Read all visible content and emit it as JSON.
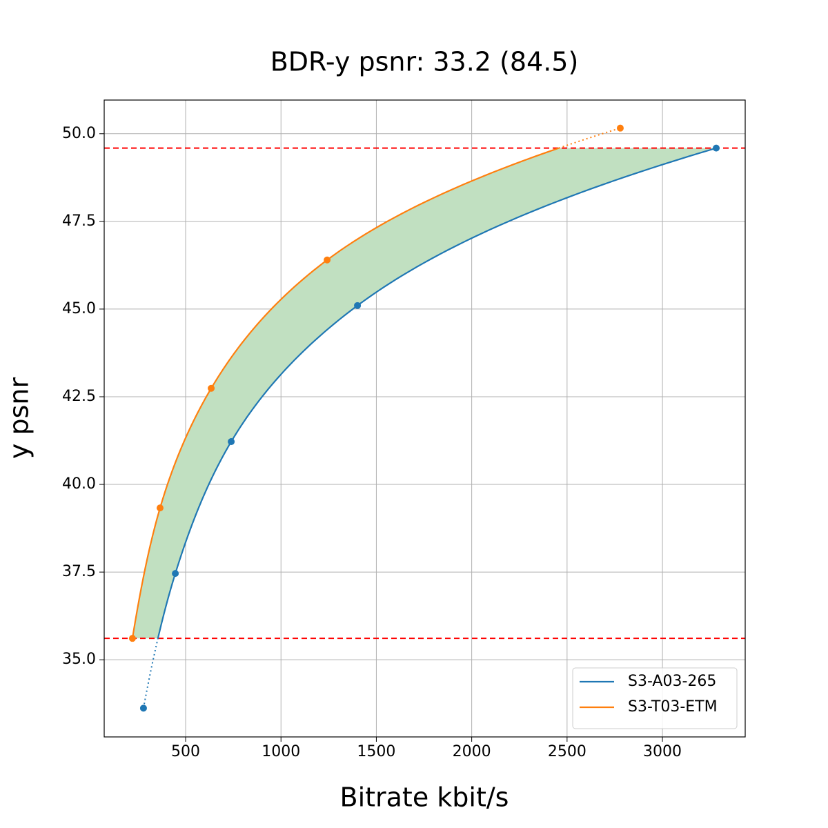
{
  "chart_data": {
    "type": "line",
    "title": "BDR-y psnr: 33.2 (84.5)",
    "x_label": "Bitrate kbit/s",
    "y_label": "y psnr",
    "series": [
      {
        "name": "S3-A03-265",
        "color": "#1f77b4",
        "x": [
          279,
          446,
          739,
          1401,
          3282
        ],
        "values": [
          33.62,
          37.46,
          41.22,
          45.1,
          49.59
        ]
      },
      {
        "name": "S3-T03-ETM",
        "color": "#ff7f0e",
        "x": [
          221,
          366,
          634,
          1242,
          2779
        ],
        "values": [
          35.61,
          39.33,
          42.74,
          46.4,
          50.16
        ]
      }
    ],
    "hlines": [
      35.61,
      49.59
    ],
    "hline_color": "#ff0000",
    "fill_color": "#c1e0c1",
    "xlim": [
      73,
      3434
    ],
    "ylim": [
      32.8,
      50.96
    ],
    "xticks": [
      500,
      1000,
      1500,
      2000,
      2500,
      3000
    ],
    "yticks": [
      {
        "value": 35,
        "label": "35.0"
      },
      37.5,
      {
        "value": 40,
        "label": "40.0"
      },
      42.5,
      {
        "value": 45,
        "label": "45.0"
      },
      47.5,
      {
        "value": 50,
        "label": "50.0"
      }
    ],
    "grid": true,
    "legend": "lower right"
  }
}
